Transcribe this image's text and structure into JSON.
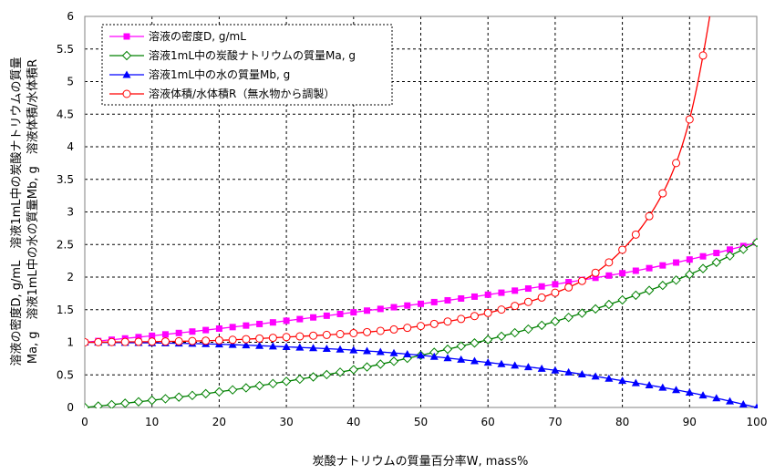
{
  "chart_data": {
    "type": "line",
    "xlabel": "炭酸ナトリウムの質量百分率W, mass%",
    "ylabel_lines": [
      "溶液の密度D, g/mL　溶液1mL中の炭酸ナトリウムの質量",
      "Ma, g　溶液1mL中の水の質量Mb, g　溶液体積/水体積R"
    ],
    "xlim": [
      0,
      100
    ],
    "ylim": [
      0,
      6
    ],
    "x_ticks": [
      0,
      10,
      20,
      30,
      40,
      50,
      60,
      70,
      80,
      90,
      100
    ],
    "y_ticks": [
      0,
      0.5,
      1,
      1.5,
      2,
      2.5,
      3,
      3.5,
      4,
      4.5,
      5,
      5.5,
      6
    ],
    "grid": true,
    "legend_position": "top-left",
    "x": [
      0,
      10,
      20,
      30,
      40,
      50,
      60,
      70,
      80,
      90,
      100
    ],
    "series": [
      {
        "name": "溶液の密度D, g/mL",
        "color": "#ff00ff",
        "marker": "square-filled",
        "values": [
          1.0,
          1.1,
          1.21,
          1.33,
          1.46,
          1.59,
          1.73,
          1.89,
          2.06,
          2.27,
          2.53
        ]
      },
      {
        "name": "溶液1mL中の炭酸ナトリウムの質量Ma, g",
        "color": "#008000",
        "marker": "diamond-open",
        "values": [
          0.0,
          0.11,
          0.24,
          0.4,
          0.58,
          0.8,
          1.04,
          1.32,
          1.65,
          2.04,
          2.53
        ]
      },
      {
        "name": "溶液1mL中の水の質量Mb, g",
        "color": "#0000ff",
        "marker": "triangle-filled",
        "values": [
          1.0,
          0.99,
          0.97,
          0.93,
          0.88,
          0.8,
          0.69,
          0.57,
          0.41,
          0.23,
          0.0
        ]
      },
      {
        "name": "溶液体積/水体積R（無水物から調製）",
        "color": "#ff0000",
        "marker": "circle-open",
        "x": [
          0,
          10,
          20,
          30,
          40,
          50,
          60,
          70,
          75,
          80,
          85,
          88,
          90,
          92,
          93
        ],
        "values": [
          1.0,
          1.01,
          1.03,
          1.08,
          1.14,
          1.25,
          1.45,
          1.76,
          2.0,
          2.42,
          3.1,
          3.75,
          4.42,
          5.4,
          6.0
        ]
      }
    ]
  }
}
